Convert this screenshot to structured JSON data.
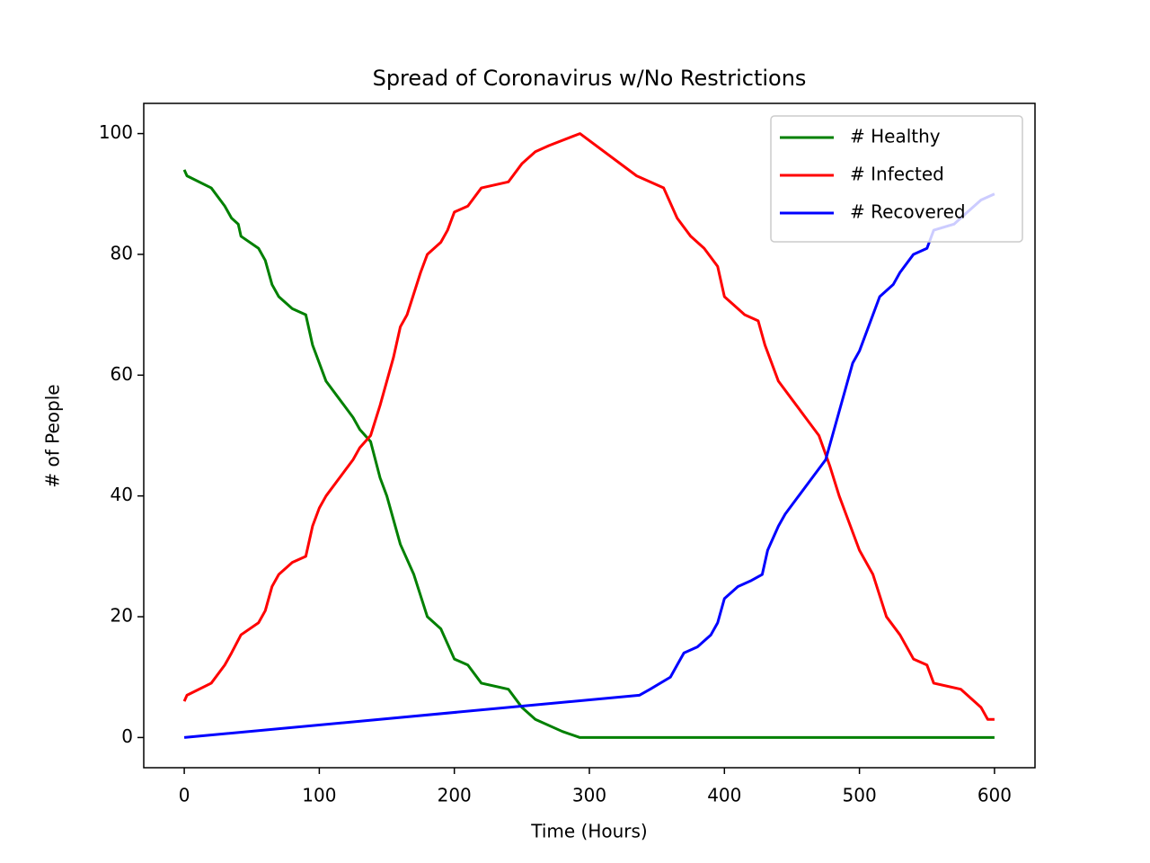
{
  "chart_data": {
    "type": "line",
    "title": "Spread of Coronavirus w/No Restrictions",
    "x_label": "Time (Hours)",
    "y_label": "# of People",
    "xlim": [
      -30,
      630
    ],
    "ylim": [
      -5,
      105
    ],
    "xticks": [
      0,
      100,
      200,
      300,
      400,
      500,
      600
    ],
    "yticks": [
      0,
      20,
      40,
      60,
      80,
      100
    ],
    "grid": false,
    "legend": "upper right",
    "series": [
      {
        "name": "# Healthy",
        "color": "#008000",
        "x": [
          0,
          2,
          20,
          30,
          35,
          40,
          42,
          55,
          60,
          65,
          70,
          80,
          90,
          95,
          100,
          105,
          115,
          125,
          130,
          138,
          145,
          150,
          160,
          170,
          180,
          190,
          200,
          210,
          220,
          240,
          250,
          260,
          280,
          293,
          600
        ],
        "values": [
          94,
          93,
          91,
          88,
          86,
          85,
          83,
          81,
          79,
          75,
          73,
          71,
          70,
          65,
          62,
          59,
          56,
          53,
          51,
          49,
          43,
          40,
          32,
          27,
          20,
          18,
          13,
          12,
          9,
          8,
          5,
          3,
          1,
          0,
          0
        ]
      },
      {
        "name": "# Infected",
        "color": "#ff0000",
        "x": [
          0,
          2,
          20,
          30,
          35,
          42,
          55,
          60,
          65,
          70,
          80,
          90,
          95,
          100,
          105,
          115,
          125,
          130,
          138,
          145,
          150,
          155,
          160,
          165,
          175,
          180,
          190,
          195,
          200,
          210,
          220,
          240,
          250,
          260,
          270,
          293,
          335,
          355,
          365,
          375,
          385,
          395,
          400,
          410,
          415,
          425,
          430,
          440,
          450,
          460,
          470,
          478,
          485,
          490,
          500,
          510,
          520,
          530,
          540,
          550,
          555,
          575,
          585,
          590,
          595,
          600
        ],
        "values": [
          6,
          7,
          9,
          12,
          14,
          17,
          19,
          21,
          25,
          27,
          29,
          30,
          35,
          38,
          40,
          43,
          46,
          48,
          50,
          55,
          59,
          63,
          68,
          70,
          77,
          80,
          82,
          84,
          87,
          88,
          91,
          92,
          95,
          97,
          98,
          100,
          93,
          91,
          86,
          83,
          81,
          78,
          73,
          71,
          70,
          69,
          65,
          59,
          56,
          53,
          50,
          45,
          40,
          37,
          31,
          27,
          20,
          17,
          13,
          12,
          9,
          8,
          6,
          5,
          3,
          3
        ]
      },
      {
        "name": "# Recovered",
        "color": "#0000ff",
        "x": [
          0,
          337,
          345,
          360,
          365,
          370,
          380,
          390,
          395,
          400,
          410,
          420,
          428,
          432,
          440,
          445,
          455,
          465,
          475,
          480,
          485,
          490,
          495,
          500,
          510,
          515,
          525,
          530,
          540,
          550,
          555,
          570,
          580,
          590,
          600
        ],
        "values": [
          0,
          7,
          8,
          10,
          12,
          14,
          15,
          17,
          19,
          23,
          25,
          26,
          27,
          31,
          35,
          37,
          40,
          43,
          46,
          50,
          54,
          58,
          62,
          64,
          70,
          73,
          75,
          77,
          80,
          81,
          84,
          85,
          87,
          89,
          90
        ]
      }
    ]
  }
}
